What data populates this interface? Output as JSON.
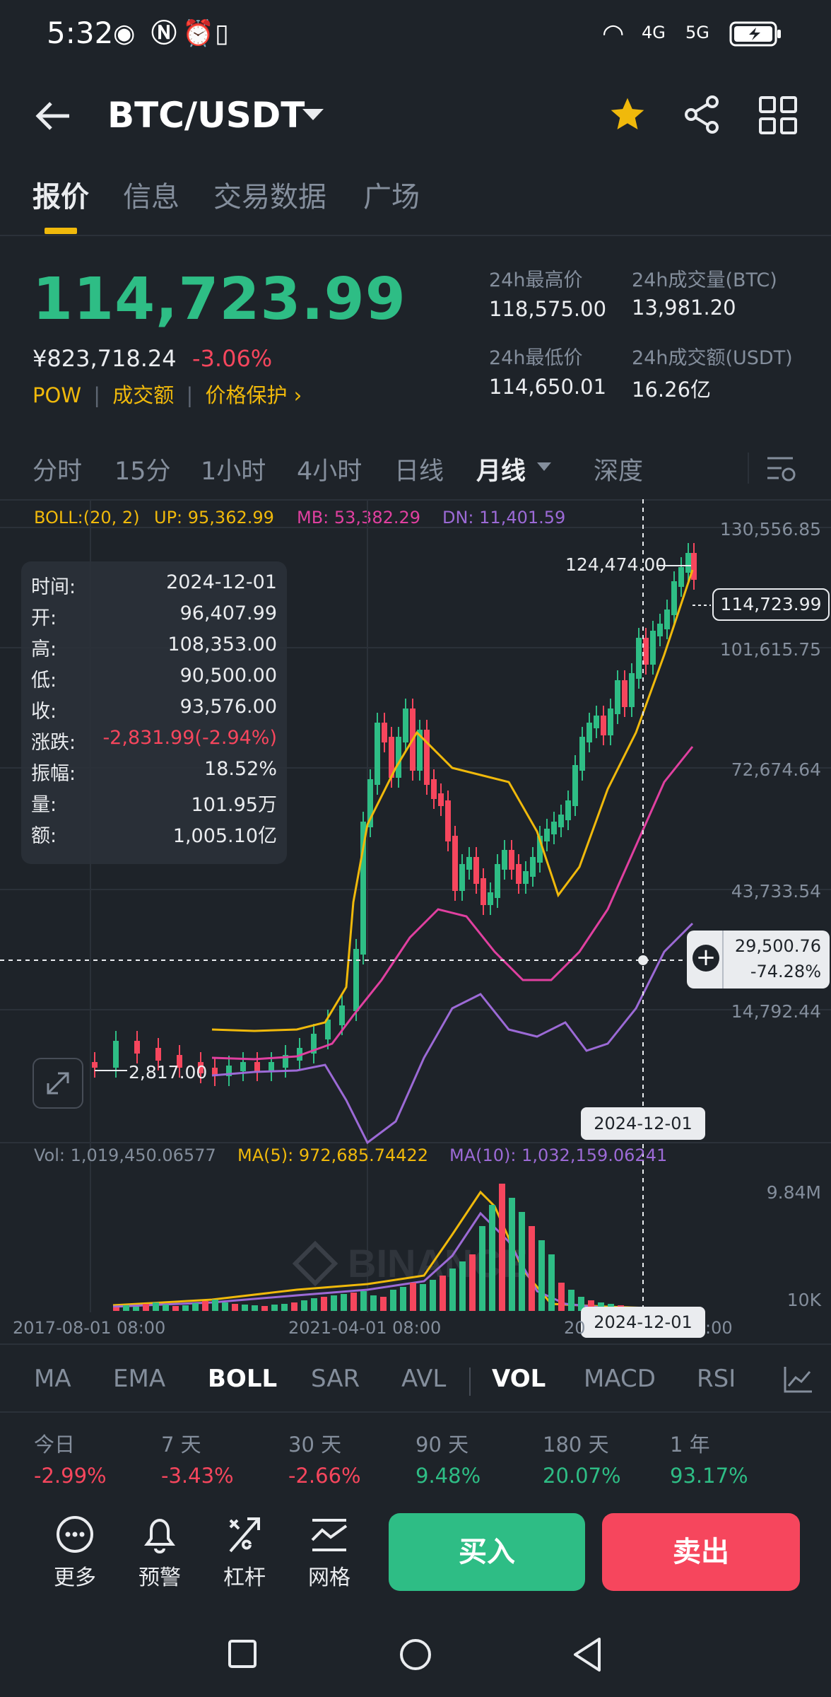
{
  "status_bar": {
    "time": "5:32",
    "net1": "4G",
    "net2": "5G"
  },
  "header": {
    "pair": "BTC/USDT"
  },
  "tabs": [
    {
      "label": "报价"
    },
    {
      "label": "信息"
    },
    {
      "label": "交易数据"
    },
    {
      "label": "广场"
    }
  ],
  "price": {
    "last": "114,723.99",
    "cny": "¥823,718.24",
    "change": "-3.06%",
    "tags": [
      "POW",
      "成交额",
      "价格保护 ›"
    ]
  },
  "stats": {
    "high_label": "24h最高价",
    "high": "118,575.00",
    "vol_btc_label": "24h成交量(BTC)",
    "vol_btc": "13,981.20",
    "low_label": "24h最低价",
    "low": "114,650.01",
    "vol_usdt_label": "24h成交额(USDT)",
    "vol_usdt": "16.26亿"
  },
  "intervals": [
    "分时",
    "15分",
    "1小时",
    "4小时",
    "日线",
    "月线",
    "深度"
  ],
  "boll_legend": {
    "name": "BOLL:(20, 2)",
    "up": "UP: 95,362.99",
    "mb": "MB: 53,382.29",
    "dn": "DN: 11,401.59"
  },
  "y_axis": [
    "130,556.85",
    "101,615.75",
    "72,674.64",
    "43,733.54",
    "14,792.44"
  ],
  "price_tag": "114,723.99",
  "crosshair_tag": {
    "price": "29,500.76",
    "pct": "-74.28%"
  },
  "high_mark": "124,474.00",
  "low_mark": "2,817.00",
  "crosshair_date": "2024-12-01",
  "watermark": "BINANCE",
  "info": {
    "rows": [
      {
        "k": "时间:",
        "v": "2024-12-01"
      },
      {
        "k": "开:",
        "v": "96,407.99"
      },
      {
        "k": "高:",
        "v": "108,353.00"
      },
      {
        "k": "低:",
        "v": "90,500.00"
      },
      {
        "k": "收:",
        "v": "93,576.00"
      },
      {
        "k": "涨跌:",
        "v": "-2,831.99(-2.94%)"
      },
      {
        "k": "振幅:",
        "v": "18.52%"
      },
      {
        "k": "量:",
        "v": "101.95万"
      },
      {
        "k": "额:",
        "v": "1,005.10亿"
      }
    ]
  },
  "vol_legend": {
    "vol": "Vol: 1,019,450.06577",
    "ma5": "MA(5): 972,685.74422",
    "ma10": "MA(10): 1,032,159.06241"
  },
  "vol_axis": [
    "9.84M",
    "10K"
  ],
  "x_axis": [
    "2017-08-01 08:00",
    "2021-04-01 08:00",
    "20",
    ":00"
  ],
  "indicators": [
    "MA",
    "EMA",
    "BOLL",
    "SAR",
    "AVL",
    "VOL",
    "MACD",
    "RSI"
  ],
  "performance": [
    {
      "label": "今日",
      "value": "-2.99%"
    },
    {
      "label": "7 天",
      "value": "-3.43%"
    },
    {
      "label": "30 天",
      "value": "-2.66%"
    },
    {
      "label": "90 天",
      "value": "9.48%"
    },
    {
      "label": "180 天",
      "value": "20.07%"
    },
    {
      "label": "1 年",
      "value": "93.17%"
    }
  ],
  "actions": [
    {
      "label": "更多"
    },
    {
      "label": "预警"
    },
    {
      "label": "杠杆"
    },
    {
      "label": "网格"
    }
  ],
  "buy_label": "买入",
  "sell_label": "卖出",
  "colors": {
    "up": "#2ebd85",
    "down": "#f6465d",
    "accent": "#f0b90b",
    "mb": "#e040a0",
    "dn": "#9c6ad6",
    "bg": "#1e2329"
  },
  "chart_data": {
    "type": "candlestick",
    "interval": "月线",
    "y_range": [
      14792.44,
      130556.85
    ],
    "x_labels": [
      "2017-08-01 08:00",
      "2021-04-01 08:00"
    ],
    "highest": 124474.0,
    "lowest": 2817.0,
    "last": 114723.99,
    "series": [
      {
        "name": "UP",
        "last": 95362.99
      },
      {
        "name": "MB",
        "last": 53382.29
      },
      {
        "name": "DN",
        "last": 11401.59
      }
    ],
    "volume": {
      "last": 1019450.06577,
      "ma5": 972685.74422,
      "ma10": 1032159.06241,
      "y_range": [
        10000,
        9840000
      ]
    }
  }
}
